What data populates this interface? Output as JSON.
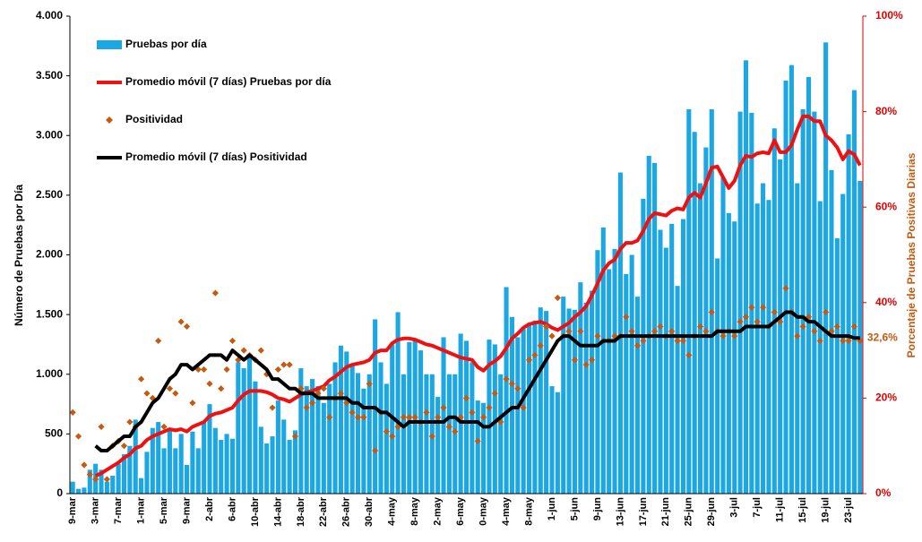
{
  "chart_data": {
    "type": "combo",
    "ylabel": "Número de Pruebas por Día",
    "y2label": "Porcentaje de Pruebas Positivas Diarias",
    "ylim": [
      0,
      4000
    ],
    "yticks": [
      0,
      500,
      {
        "value": 1000,
        "label": "1.000"
      },
      {
        "value": 1500,
        "label": "1.500"
      },
      {
        "value": 2000,
        "label": "2.000"
      },
      {
        "value": 2500,
        "label": "2.500"
      },
      {
        "value": 3000,
        "label": "3.000"
      },
      {
        "value": 3500,
        "label": "3.500"
      },
      {
        "value": 4000,
        "label": "4.000"
      }
    ],
    "y2lim": [
      0,
      100
    ],
    "y2ticks": [
      {
        "value": 0,
        "label": "0%"
      },
      {
        "value": 20,
        "label": "20%"
      },
      {
        "value": 40,
        "label": "40%"
      },
      {
        "value": 60,
        "label": "60%"
      },
      {
        "value": 80,
        "label": "80%"
      },
      {
        "value": 100,
        "label": "100%"
      }
    ],
    "legend": "upper left",
    "categories": [
      "9-mar",
      null,
      null,
      null,
      "3-mar",
      null,
      null,
      null,
      "7-mar",
      null,
      null,
      null,
      "1-mar",
      null,
      null,
      null,
      "5-mar",
      null,
      null,
      null,
      "9-mar",
      null,
      null,
      null,
      "2-abr",
      null,
      null,
      null,
      "6-abr",
      null,
      null,
      null,
      "10-abr",
      null,
      null,
      null,
      "14-abr",
      null,
      null,
      null,
      "18-abr",
      null,
      null,
      null,
      "22-abr",
      null,
      null,
      null,
      "26-abr",
      null,
      null,
      null,
      "30-abr",
      null,
      null,
      null,
      "4-may",
      null,
      null,
      null,
      "8-may",
      null,
      null,
      null,
      "2-may",
      null,
      null,
      null,
      "6-may",
      null,
      null,
      null,
      "0-may",
      null,
      null,
      null,
      "4-may",
      null,
      null,
      null,
      "8-may",
      null,
      null,
      null,
      "1-jun",
      null,
      null,
      null,
      "5-jun",
      null,
      null,
      null,
      "9-jun",
      null,
      null,
      null,
      "13-jun",
      null,
      null,
      null,
      "17-jun",
      null,
      null,
      null,
      "21-jun",
      null,
      null,
      null,
      "25-jun",
      null,
      null,
      null,
      "29-jun",
      null,
      null,
      null,
      "3-jul",
      null,
      null,
      null,
      "7-jul",
      null,
      null,
      null,
      "11-jul",
      null,
      null,
      null,
      "15-jul",
      null,
      null,
      null,
      "19-jul",
      null,
      null,
      null,
      "23-jul",
      null,
      null
    ],
    "series": [
      {
        "name": "Pruebas por día",
        "type": "bar",
        "color": "#1ba7e4",
        "values": [
          100,
          40,
          50,
          200,
          250,
          200,
          100,
          150,
          250,
          330,
          400,
          620,
          130,
          350,
          550,
          600,
          380,
          540,
          380,
          500,
          240,
          520,
          380,
          600,
          750,
          550,
          450,
          500,
          460,
          1100,
          1050,
          1150,
          940,
          560,
          420,
          480,
          780,
          620,
          450,
          530,
          1050,
          900,
          960,
          900,
          760,
          920,
          1100,
          1240,
          1190,
          1080,
          1010,
          880,
          1000,
          1460,
          1100,
          920,
          1250,
          1520,
          1000,
          1270,
          1290,
          1200,
          1000,
          1000,
          810,
          1310,
          1000,
          1000,
          1340,
          1280,
          1100,
          780,
          760,
          1290,
          1250,
          1000,
          1730,
          1480,
          1310,
          1380,
          1420,
          1450,
          1560,
          1530,
          900,
          850,
          1650,
          1550,
          1540,
          1770,
          1600,
          1700,
          2040,
          2230,
          1880,
          2050,
          2690,
          1840,
          2000,
          1650,
          2470,
          2830,
          2770,
          2210,
          2060,
          2260,
          1740,
          2300,
          3220,
          3030,
          2600,
          2900,
          3220,
          1970,
          2650,
          2350,
          2280,
          3200,
          3630,
          3190,
          2430,
          2600,
          2460,
          3060,
          2800,
          3460,
          3590,
          2600,
          3220,
          3490,
          3200,
          2450,
          3780,
          2710,
          2140,
          2510,
          3010,
          3380,
          2620
        ]
      },
      {
        "name": "Promedio móvil (7 días) Pruebas por día",
        "type": "line",
        "color": "#ee1111",
        "values": [
          null,
          null,
          null,
          null,
          150,
          170,
          200,
          230,
          260,
          300,
          330,
          380,
          400,
          450,
          480,
          500,
          520,
          540,
          530,
          540,
          520,
          560,
          580,
          600,
          650,
          670,
          680,
          700,
          720,
          780,
          830,
          860,
          860,
          860,
          850,
          830,
          800,
          790,
          770,
          800,
          830,
          850,
          860,
          880,
          900,
          950,
          980,
          1020,
          1060,
          1080,
          1090,
          1100,
          1120,
          1180,
          1200,
          1200,
          1260,
          1290,
          1300,
          1300,
          1290,
          1270,
          1250,
          1240,
          1220,
          1200,
          1180,
          1160,
          1140,
          1130,
          1120,
          1060,
          1030,
          1080,
          1110,
          1150,
          1220,
          1300,
          1340,
          1390,
          1420,
          1430,
          1440,
          1420,
          1390,
          1370,
          1400,
          1430,
          1480,
          1520,
          1570,
          1660,
          1760,
          1870,
          1930,
          1960,
          2050,
          2100,
          2100,
          2120,
          2200,
          2300,
          2350,
          2340,
          2330,
          2370,
          2390,
          2380,
          2480,
          2520,
          2480,
          2600,
          2730,
          2740,
          2650,
          2560,
          2620,
          2750,
          2830,
          2820,
          2850,
          2860,
          2850,
          2960,
          2860,
          2860,
          2920,
          3050,
          3160,
          3160,
          3120,
          3120,
          3000,
          2960,
          2900,
          2800,
          2870,
          2840,
          2750
        ]
      },
      {
        "name": "Positividad",
        "type": "scatter",
        "axis": "y2",
        "color": "#c55a11",
        "values": [
          17,
          12,
          6,
          4,
          3,
          14,
          3,
          10,
          11,
          10,
          15,
          14,
          24,
          21,
          20,
          32,
          14,
          22,
          21,
          36,
          35,
          19,
          26,
          26,
          23,
          42,
          22,
          26,
          32,
          28,
          30,
          29,
          28,
          30,
          25,
          18,
          26,
          27,
          27,
          12,
          22,
          18,
          19,
          21,
          22,
          16,
          20,
          21,
          19,
          17,
          16,
          16,
          23,
          9,
          17,
          13,
          12,
          14,
          16,
          16,
          16,
          15,
          17,
          12,
          16,
          18,
          14,
          13,
          16,
          20,
          17,
          11,
          16,
          18,
          21,
          15,
          24,
          23,
          22,
          18,
          28,
          29,
          31,
          35,
          33,
          41,
          33,
          34,
          28,
          34,
          27,
          28,
          33,
          32,
          32,
          33,
          33,
          37,
          34,
          31,
          32,
          33,
          34,
          35,
          33,
          34,
          32,
          32,
          29,
          33,
          35,
          34,
          38,
          34,
          33,
          34,
          33,
          36,
          37,
          39,
          36,
          39,
          35,
          38,
          36,
          43,
          38,
          33,
          35,
          37,
          34,
          32,
          38,
          34,
          35,
          32,
          32,
          35,
          32
        ]
      },
      {
        "name": "Promedio móvil (7 días) Positividad",
        "type": "line",
        "axis": "y2",
        "color": "#000000",
        "values": [
          null,
          null,
          null,
          null,
          10,
          9,
          9,
          10,
          11,
          12,
          12,
          14,
          15,
          17,
          19,
          20,
          22,
          24,
          25,
          27,
          27,
          26,
          27,
          28,
          29,
          29,
          29,
          28,
          30,
          29,
          28,
          29,
          28,
          27,
          26,
          24,
          24,
          23,
          22,
          22,
          21,
          21,
          21,
          20,
          20,
          20,
          20,
          20,
          20,
          19,
          19,
          18,
          18,
          18,
          17,
          17,
          16,
          15,
          14,
          15,
          15,
          15,
          15,
          15,
          15,
          15,
          16,
          16,
          15,
          15,
          15,
          15,
          14,
          14,
          15,
          16,
          17,
          18,
          18,
          20,
          22,
          24,
          26,
          28,
          30,
          32,
          33,
          33,
          32,
          31,
          31,
          31,
          31,
          32,
          32,
          32,
          33,
          33,
          33,
          33,
          33,
          33,
          33,
          33,
          33,
          33,
          33,
          33,
          33,
          33,
          33,
          33,
          33,
          34,
          34,
          34,
          34,
          34,
          35,
          35,
          35,
          35,
          35,
          36,
          37,
          38,
          38,
          37,
          37,
          36,
          36,
          35,
          34,
          33,
          33,
          33,
          33,
          32.6,
          32.6
        ],
        "value_labels": [
          null,
          null,
          null,
          null,
          null,
          null,
          null,
          null,
          null,
          null,
          null,
          null,
          null,
          null,
          null,
          null,
          null,
          null,
          null,
          null,
          null,
          null,
          null,
          null,
          null,
          null,
          null,
          null,
          null,
          null,
          null,
          null,
          null,
          null,
          null,
          null,
          null,
          null,
          null,
          null,
          null,
          null,
          null,
          null,
          null,
          null,
          null,
          null,
          null,
          null,
          null,
          null,
          null,
          null,
          null,
          null,
          null,
          null,
          null,
          null,
          null,
          null,
          null,
          null,
          null,
          null,
          null,
          null,
          null,
          null,
          null,
          null,
          null,
          null,
          null,
          null,
          null,
          null,
          null,
          null,
          null,
          null,
          null,
          null,
          null,
          null,
          null,
          null,
          null,
          null,
          null,
          null,
          null,
          null,
          null,
          null,
          null,
          null,
          null,
          null,
          null,
          null,
          null,
          null,
          null,
          null,
          null,
          null,
          null,
          null,
          null,
          null,
          null,
          null,
          null,
          null,
          null,
          null,
          null,
          null,
          null,
          null,
          null,
          null,
          null,
          null,
          null,
          null,
          null,
          null,
          null,
          null,
          null,
          null,
          null,
          null,
          null,
          null,
          "32,6%"
        ]
      }
    ]
  }
}
